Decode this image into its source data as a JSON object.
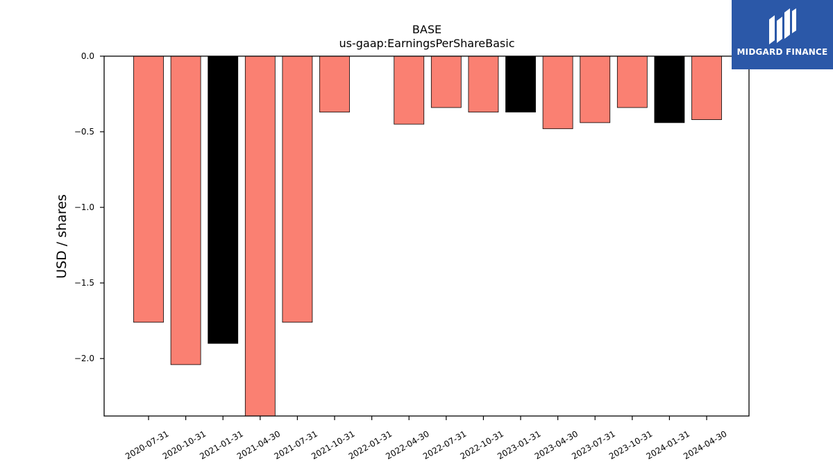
{
  "chart_data": {
    "type": "bar",
    "title": "BASE",
    "subtitle": "us-gaap:EarningsPerShareBasic",
    "xlabel": "",
    "ylabel": "USD / shares",
    "ylim": [
      -2.38,
      0.0
    ],
    "yticks": [
      "0.0",
      "−0.5",
      "−1.0",
      "−1.5",
      "−2.0"
    ],
    "ytick_values": [
      0.0,
      -0.5,
      -1.0,
      -1.5,
      -2.0
    ],
    "categories": [
      "2020-07-31",
      "2020-10-31",
      "2021-01-31",
      "2021-04-30",
      "2021-07-31",
      "2021-10-31",
      "2022-01-31",
      "2022-04-30",
      "2022-07-31",
      "2022-10-31",
      "2023-01-31",
      "2023-04-30",
      "2023-07-31",
      "2023-10-31",
      "2024-01-31",
      "2024-04-30"
    ],
    "values": [
      -1.76,
      -2.04,
      -1.9,
      -2.38,
      -1.76,
      -0.37,
      null,
      -0.45,
      -0.34,
      -0.37,
      -0.37,
      -0.48,
      -0.44,
      -0.34,
      -0.44,
      -0.42
    ],
    "bar_colors": [
      "#fa8072",
      "#fa8072",
      "#000000",
      "#fa8072",
      "#fa8072",
      "#fa8072",
      "#fa8072",
      "#fa8072",
      "#fa8072",
      "#fa8072",
      "#000000",
      "#fa8072",
      "#fa8072",
      "#fa8072",
      "#000000",
      "#fa8072"
    ],
    "grid": false,
    "legend": "none"
  },
  "brand": {
    "name": "MIDGARD FINANCE",
    "color": "#2b58a8"
  }
}
